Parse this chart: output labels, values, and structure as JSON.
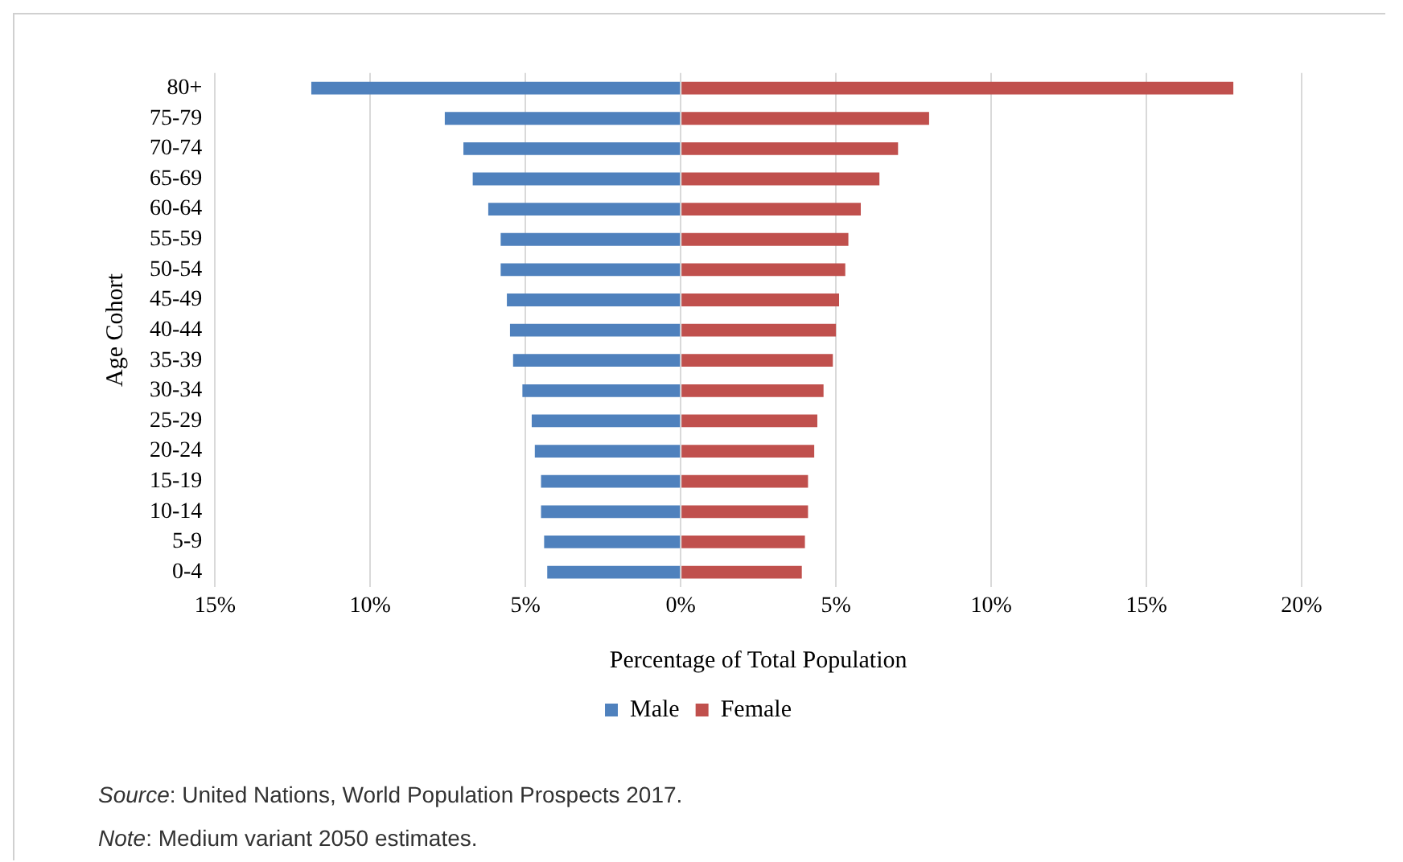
{
  "chart_data": {
    "type": "bar",
    "orientation": "horizontal",
    "stacked": true,
    "categories": [
      "80+",
      "75-79",
      "70-74",
      "65-69",
      "60-64",
      "55-59",
      "50-54",
      "45-49",
      "40-44",
      "35-39",
      "30-34",
      "25-29",
      "20-24",
      "15-19",
      "10-14",
      "5-9",
      "0-4"
    ],
    "series": [
      {
        "name": "Male",
        "color": "#4f81bd",
        "values": [
          -11.9,
          -7.6,
          -7.0,
          -6.7,
          -6.2,
          -5.8,
          -5.8,
          -5.6,
          -5.5,
          -5.4,
          -5.1,
          -4.8,
          -4.7,
          -4.5,
          -4.5,
          -4.4,
          -4.3
        ]
      },
      {
        "name": "Female",
        "color": "#c0504d",
        "values": [
          17.8,
          8.0,
          7.0,
          6.4,
          5.8,
          5.4,
          5.3,
          5.1,
          5.0,
          4.9,
          4.6,
          4.4,
          4.3,
          4.1,
          4.1,
          4.0,
          3.9
        ]
      }
    ],
    "xlim": [
      -15,
      20
    ],
    "xticks": [
      {
        "value": -15,
        "label": "15%"
      },
      {
        "value": -10,
        "label": "10%"
      },
      {
        "value": -5,
        "label": "5%"
      },
      {
        "value": 0,
        "label": "0%"
      },
      {
        "value": 5,
        "label": "5%"
      },
      {
        "value": 10,
        "label": "10%"
      },
      {
        "value": 15,
        "label": "15%"
      },
      {
        "value": 20,
        "label": "20%"
      }
    ],
    "xlabel": "Percentage of Total Population",
    "ylabel": "Age Cohort",
    "grid": "x",
    "legend": "bottom",
    "annotations": [
      "Source: United Nations, World Population Prospects 2017.",
      "Note: Medium variant 2050 estimates."
    ]
  }
}
